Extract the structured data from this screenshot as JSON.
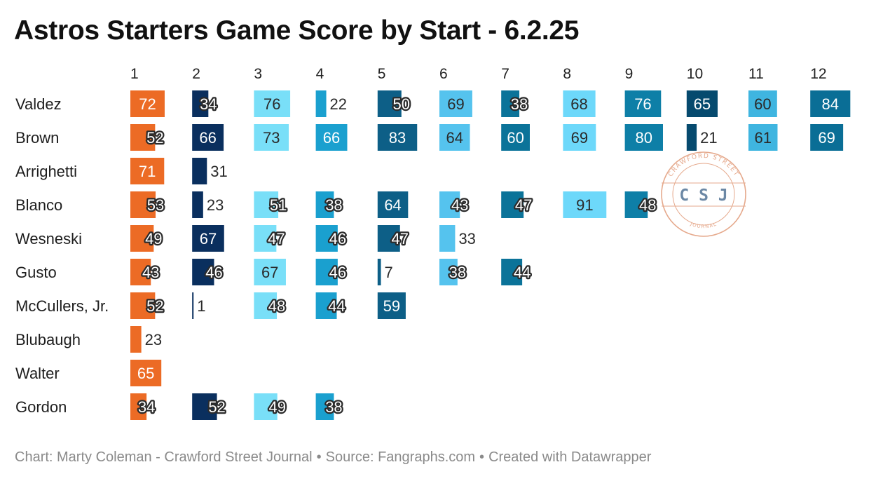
{
  "title": "Astros Starters Game Score by Start - 6.2.25",
  "footer": {
    "credit": "Chart: Marty Coleman - Crawford Street Journal",
    "source": "Source: Fangraphs.com",
    "tool": "Created with Datawrapper"
  },
  "watermark": {
    "letters": "C S J",
    "ring_top": "CRAWFORD STREET",
    "ring_bottom": "JOURNAL"
  },
  "colors": {
    "col1": "#ec6b25",
    "col2": "#0a2f5e",
    "col3": "#79dff8",
    "col4": "#1aa0cf",
    "col5": "#0d5f87",
    "col6": "#55c3ee",
    "col7": "#0b7399",
    "col8": "#6dd8fa",
    "col9": "#0e7fa7",
    "col10": "#064a6e",
    "col11": "#3fb5e0",
    "col12": "#0a6e96",
    "stamp": "#e3a080"
  },
  "chart_data": {
    "type": "table",
    "title": "Astros Starters Game Score by Start - 6.2.25",
    "columns": [
      "1",
      "2",
      "3",
      "4",
      "5",
      "6",
      "7",
      "8",
      "9",
      "10",
      "11",
      "12"
    ],
    "value_scale_max": 100,
    "rows": [
      {
        "name": "Valdez",
        "values": [
          72,
          34,
          76,
          22,
          50,
          69,
          38,
          68,
          76,
          65,
          60,
          84
        ]
      },
      {
        "name": "Brown",
        "values": [
          52,
          66,
          73,
          66,
          83,
          64,
          60,
          69,
          80,
          21,
          61,
          69
        ]
      },
      {
        "name": "Arrighetti",
        "values": [
          71,
          31
        ]
      },
      {
        "name": "Blanco",
        "values": [
          53,
          23,
          51,
          38,
          64,
          43,
          47,
          91,
          48
        ]
      },
      {
        "name": "Wesneski",
        "values": [
          49,
          67,
          47,
          46,
          47,
          33
        ]
      },
      {
        "name": "Gusto",
        "values": [
          43,
          46,
          67,
          46,
          7,
          38,
          44
        ]
      },
      {
        "name": "McCullers, Jr.",
        "values": [
          52,
          1,
          48,
          44,
          59
        ]
      },
      {
        "name": "Blubaugh",
        "values": [
          23
        ]
      },
      {
        "name": "Walter",
        "values": [
          65
        ]
      },
      {
        "name": "Gordon",
        "values": [
          34,
          52,
          49,
          38
        ]
      }
    ]
  }
}
